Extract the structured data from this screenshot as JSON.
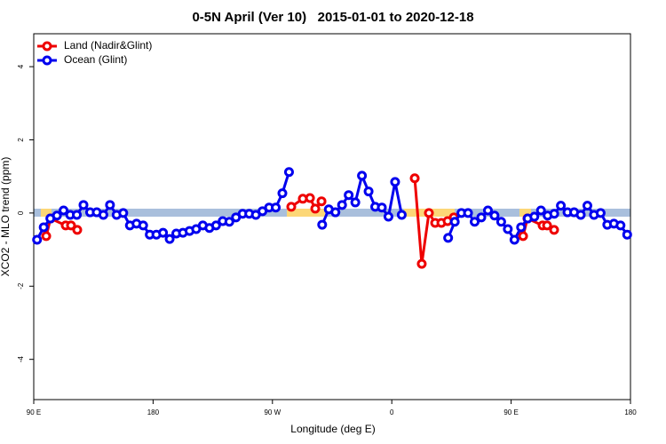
{
  "chart_data": {
    "type": "line",
    "title": "0-5N April (Ver 10)   2015-01-01 to 2020-12-18",
    "x_label": "Longitude (deg E)",
    "y_label": "XCO2 - MLO trend (ppm)",
    "xlim": [
      90,
      540
    ],
    "ylim": [
      -5.1,
      4.9
    ],
    "xticks": [
      {
        "value": 90,
        "label": "90 E"
      },
      180,
      {
        "value": 270,
        "label": "90 W"
      },
      {
        "value": 360,
        "label": "0"
      },
      {
        "value": 450,
        "label": "90 E"
      },
      {
        "value": 540,
        "label": "180"
      }
    ],
    "yticks": [
      -4,
      -2,
      0,
      2,
      4
    ],
    "legend": "topleft",
    "series": [
      {
        "name": "Land (Nadir&Glint)",
        "color": "#ee0000",
        "x": [
          99.4,
          102.7,
          114.1,
          118.1,
          122.8,
          null,
          284.2,
          292.9,
          298.3,
          302.3,
          307.0,
          null,
          377.3,
          382.6,
          388.0,
          392.7,
          397.4,
          402.1,
          406.8,
          null,
          459.0,
          462.3,
          473.7,
          477.1,
          482.4
        ],
        "values": [
          -0.63,
          -0.15,
          -0.34,
          -0.34,
          -0.46,
          null,
          0.17,
          0.39,
          0.41,
          0.12,
          0.32,
          null,
          0.95,
          -1.39,
          0,
          -0.27,
          -0.27,
          -0.22,
          -0.12,
          null,
          -0.63,
          -0.15,
          -0.34,
          -0.34,
          -0.46
        ]
      },
      {
        "name": "Ocean (Glint)",
        "color": "#0000ee",
        "x": [
          92.5,
          97.5,
          102.5,
          107.5,
          112.5,
          117.5,
          122.5,
          127.5,
          132.5,
          137.5,
          142.5,
          147.5,
          152.5,
          157.5,
          162.5,
          167.5,
          172.5,
          177.5,
          182.5,
          187.5,
          192.5,
          197.5,
          202.5,
          207.5,
          212.5,
          217.5,
          222.5,
          227.5,
          232.5,
          237.5,
          242.5,
          247.5,
          252.5,
          257.5,
          262.5,
          267.5,
          272.5,
          277.5,
          282.5,
          null,
          307.5,
          312.5,
          317.5,
          322.5,
          327.5,
          332.5,
          337.5,
          342.5,
          347.5,
          352.5,
          357.5,
          362.5,
          367.5,
          null,
          402.5,
          407.5,
          412.5,
          417.5,
          422.5,
          427.5,
          432.5,
          437.5,
          442.5,
          447.5,
          452.5,
          457.5,
          462.5,
          467.5,
          472.5,
          477.5,
          482.5,
          487.5,
          492.5,
          497.5,
          502.5,
          507.5,
          512.5,
          517.5,
          522.5,
          527.5,
          532.5,
          537.5
        ],
        "values": [
          -0.73,
          -0.39,
          -0.15,
          -0.07,
          0.07,
          -0.05,
          -0.05,
          0.22,
          0.02,
          0.02,
          -0.05,
          0.22,
          -0.05,
          0,
          -0.34,
          -0.29,
          -0.34,
          -0.59,
          -0.59,
          -0.54,
          -0.71,
          -0.56,
          -0.54,
          -0.49,
          -0.44,
          -0.34,
          -0.41,
          -0.34,
          -0.22,
          -0.24,
          -0.12,
          -0.02,
          -0.02,
          -0.05,
          0.05,
          0.15,
          0.15,
          0.54,
          1.12,
          null,
          -0.32,
          0.1,
          0.02,
          0.22,
          0.49,
          0.29,
          1.02,
          0.59,
          0.17,
          0.15,
          -0.1,
          0.85,
          -0.05,
          null,
          -0.68,
          -0.24,
          0,
          0,
          -0.24,
          -0.12,
          0.07,
          -0.07,
          -0.24,
          -0.44,
          -0.73,
          -0.39,
          -0.15,
          -0.1,
          0.07,
          -0.07,
          -0.02,
          0.2,
          0.02,
          0.02,
          -0.05,
          0.2,
          -0.05,
          0,
          -0.32,
          -0.29,
          -0.34,
          -0.59
        ]
      }
    ]
  }
}
